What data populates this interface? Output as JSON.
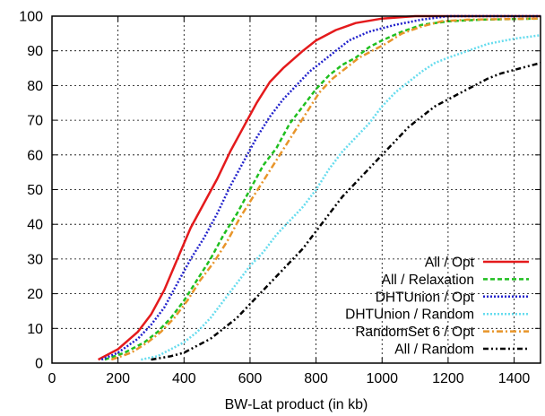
{
  "chart_data": {
    "type": "line",
    "title": "",
    "xlabel": "BW-Lat product (in kb)",
    "ylabel": "",
    "xlim": [
      0,
      1480
    ],
    "ylim": [
      0,
      100
    ],
    "x_ticks": [
      0,
      200,
      400,
      600,
      800,
      1000,
      1200,
      1400
    ],
    "y_ticks": [
      0,
      10,
      20,
      30,
      40,
      50,
      60,
      70,
      80,
      90,
      100
    ],
    "grid": true,
    "legend_position": "bottom-right",
    "series": [
      {
        "name": "All / Opt",
        "color": "#e41a1c",
        "style": "solid",
        "points": [
          [
            140,
            1
          ],
          [
            200,
            4
          ],
          [
            260,
            9
          ],
          [
            300,
            14
          ],
          [
            340,
            21
          ],
          [
            380,
            30
          ],
          [
            420,
            39
          ],
          [
            460,
            46
          ],
          [
            500,
            53
          ],
          [
            540,
            61
          ],
          [
            580,
            68
          ],
          [
            620,
            75
          ],
          [
            660,
            81
          ],
          [
            700,
            85
          ],
          [
            760,
            90
          ],
          [
            800,
            93
          ],
          [
            860,
            96
          ],
          [
            920,
            98
          ],
          [
            1000,
            99.3
          ],
          [
            1100,
            100
          ],
          [
            1200,
            100
          ],
          [
            1480,
            100
          ]
        ]
      },
      {
        "name": "All / Relaxation",
        "color": "#1fbf1f",
        "style": "dashed",
        "points": [
          [
            160,
            1
          ],
          [
            220,
            3
          ],
          [
            280,
            6
          ],
          [
            320,
            9
          ],
          [
            360,
            13
          ],
          [
            400,
            18
          ],
          [
            440,
            24
          ],
          [
            480,
            30
          ],
          [
            520,
            37
          ],
          [
            560,
            43
          ],
          [
            600,
            50
          ],
          [
            640,
            57
          ],
          [
            680,
            62
          ],
          [
            720,
            69
          ],
          [
            760,
            74
          ],
          [
            800,
            79
          ],
          [
            840,
            83
          ],
          [
            880,
            86
          ],
          [
            920,
            88
          ],
          [
            960,
            91
          ],
          [
            1000,
            93
          ],
          [
            1060,
            95.5
          ],
          [
            1120,
            97.5
          ],
          [
            1200,
            98.5
          ],
          [
            1300,
            99
          ],
          [
            1480,
            99.3
          ]
        ]
      },
      {
        "name": "DHTUnion / Opt",
        "color": "#2222cc",
        "style": "dotted",
        "points": [
          [
            150,
            1
          ],
          [
            200,
            3
          ],
          [
            260,
            7
          ],
          [
            300,
            11
          ],
          [
            340,
            16
          ],
          [
            380,
            23
          ],
          [
            420,
            30
          ],
          [
            460,
            36
          ],
          [
            500,
            43
          ],
          [
            540,
            51
          ],
          [
            580,
            58
          ],
          [
            620,
            65
          ],
          [
            660,
            71
          ],
          [
            700,
            76
          ],
          [
            740,
            80
          ],
          [
            780,
            84
          ],
          [
            820,
            87
          ],
          [
            860,
            90
          ],
          [
            900,
            93
          ],
          [
            960,
            95.5
          ],
          [
            1040,
            97.5
          ],
          [
            1120,
            99
          ],
          [
            1200,
            100
          ],
          [
            1300,
            100
          ],
          [
            1480,
            100
          ]
        ]
      },
      {
        "name": "DHTUnion / Random",
        "color": "#66dcee",
        "style": "dotted",
        "points": [
          [
            270,
            1
          ],
          [
            320,
            2
          ],
          [
            360,
            4
          ],
          [
            400,
            6
          ],
          [
            440,
            9
          ],
          [
            480,
            13
          ],
          [
            520,
            18
          ],
          [
            560,
            23
          ],
          [
            600,
            28
          ],
          [
            640,
            32
          ],
          [
            680,
            37
          ],
          [
            720,
            41
          ],
          [
            760,
            45
          ],
          [
            800,
            50
          ],
          [
            840,
            56
          ],
          [
            880,
            61
          ],
          [
            920,
            65
          ],
          [
            960,
            69
          ],
          [
            1000,
            74
          ],
          [
            1040,
            78
          ],
          [
            1080,
            81
          ],
          [
            1120,
            84
          ],
          [
            1160,
            86.5
          ],
          [
            1200,
            88
          ],
          [
            1260,
            90
          ],
          [
            1320,
            92
          ],
          [
            1400,
            93.5
          ],
          [
            1480,
            94.5
          ]
        ]
      },
      {
        "name": "RandomSet 6 / Opt",
        "color": "#e8952a",
        "style": "dashdot",
        "points": [
          [
            180,
            1
          ],
          [
            240,
            3
          ],
          [
            290,
            6
          ],
          [
            330,
            9
          ],
          [
            370,
            13
          ],
          [
            410,
            18
          ],
          [
            450,
            24
          ],
          [
            490,
            29
          ],
          [
            530,
            35
          ],
          [
            570,
            42
          ],
          [
            610,
            48
          ],
          [
            650,
            54
          ],
          [
            690,
            60
          ],
          [
            730,
            66
          ],
          [
            770,
            72
          ],
          [
            810,
            78
          ],
          [
            850,
            82
          ],
          [
            890,
            85
          ],
          [
            930,
            88
          ],
          [
            970,
            90
          ],
          [
            1010,
            92
          ],
          [
            1060,
            95
          ],
          [
            1120,
            97
          ],
          [
            1180,
            98.5
          ],
          [
            1260,
            99
          ],
          [
            1480,
            99.3
          ]
        ]
      },
      {
        "name": "All / Random",
        "color": "#000000",
        "style": "dashdotdot",
        "points": [
          [
            300,
            1
          ],
          [
            360,
            2
          ],
          [
            400,
            3
          ],
          [
            440,
            5
          ],
          [
            480,
            7
          ],
          [
            520,
            10
          ],
          [
            560,
            13
          ],
          [
            600,
            17
          ],
          [
            640,
            21
          ],
          [
            680,
            25
          ],
          [
            720,
            29
          ],
          [
            760,
            33
          ],
          [
            800,
            38
          ],
          [
            840,
            43
          ],
          [
            880,
            48
          ],
          [
            920,
            52
          ],
          [
            960,
            56
          ],
          [
            1000,
            60
          ],
          [
            1040,
            64
          ],
          [
            1080,
            68
          ],
          [
            1120,
            71
          ],
          [
            1160,
            74
          ],
          [
            1200,
            76
          ],
          [
            1240,
            78
          ],
          [
            1280,
            80
          ],
          [
            1320,
            82
          ],
          [
            1360,
            83.5
          ],
          [
            1400,
            84.5
          ],
          [
            1440,
            85.5
          ],
          [
            1480,
            86.5
          ]
        ]
      }
    ]
  }
}
